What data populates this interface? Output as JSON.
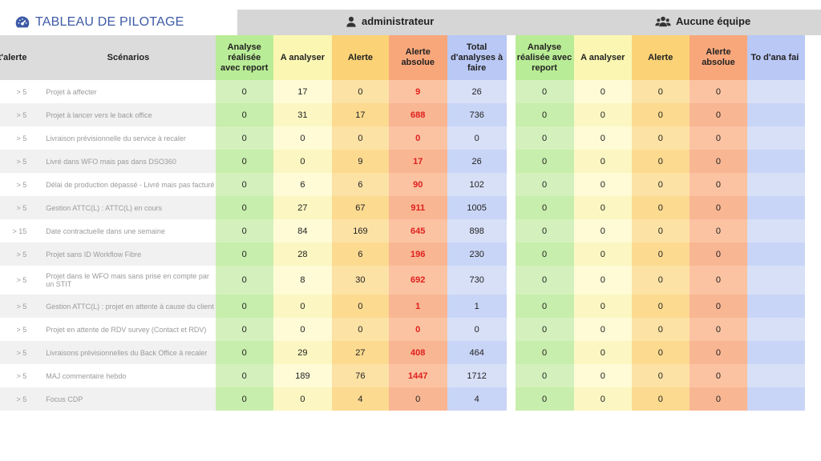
{
  "header": {
    "title": "TABLEAU DE PILOTAGE",
    "user": "administrateur",
    "team": "Aucune équipe"
  },
  "columns": {
    "alerte": "t'alerte",
    "scenarios": "Scénarios",
    "analyse_report": "Analyse réalisée avec report",
    "a_analyser": "A analyser",
    "alerte_col": "Alerte",
    "alerte_absolue": "Alerte absolue",
    "total": "Total d'analyses à faire",
    "total_cut": "To d'ana fai"
  },
  "rows": [
    {
      "alerte": "> 5",
      "scenario": "Projet à affecter",
      "g1": "0",
      "y1": "17",
      "o1": "0",
      "r1": "9",
      "b1": "26",
      "r1_red": true,
      "g2": "0",
      "y2": "0",
      "o2": "0",
      "r2": "0"
    },
    {
      "alerte": "> 5",
      "scenario": "Projet à lancer vers le back office",
      "g1": "0",
      "y1": "31",
      "o1": "17",
      "r1": "688",
      "b1": "736",
      "r1_red": true,
      "g2": "0",
      "y2": "0",
      "o2": "0",
      "r2": "0"
    },
    {
      "alerte": "> 5",
      "scenario": "Livraison prévisionnelle du service à recaler",
      "g1": "0",
      "y1": "0",
      "o1": "0",
      "r1": "0",
      "b1": "0",
      "r1_red": true,
      "g2": "0",
      "y2": "0",
      "o2": "0",
      "r2": "0"
    },
    {
      "alerte": "> 5",
      "scenario": "Livré dans WFO mais pas dans DSO360",
      "g1": "0",
      "y1": "0",
      "o1": "9",
      "r1": "17",
      "b1": "26",
      "r1_red": true,
      "g2": "0",
      "y2": "0",
      "o2": "0",
      "r2": "0"
    },
    {
      "alerte": "> 5",
      "scenario": "Délai de production dépassé - Livré mais pas facturé",
      "g1": "0",
      "y1": "6",
      "o1": "6",
      "r1": "90",
      "b1": "102",
      "r1_red": true,
      "g2": "0",
      "y2": "0",
      "o2": "0",
      "r2": "0"
    },
    {
      "alerte": "> 5",
      "scenario": "Gestion ATTC(L) : ATTC(L) en cours",
      "g1": "0",
      "y1": "27",
      "o1": "67",
      "r1": "911",
      "b1": "1005",
      "r1_red": true,
      "g2": "0",
      "y2": "0",
      "o2": "0",
      "r2": "0"
    },
    {
      "alerte": "> 15",
      "scenario": "Date contractuelle dans une semaine",
      "g1": "0",
      "y1": "84",
      "o1": "169",
      "r1": "645",
      "b1": "898",
      "r1_red": true,
      "g2": "0",
      "y2": "0",
      "o2": "0",
      "r2": "0"
    },
    {
      "alerte": "> 5",
      "scenario": "Projet sans ID Workflow Fibre",
      "g1": "0",
      "y1": "28",
      "o1": "6",
      "r1": "196",
      "b1": "230",
      "r1_red": true,
      "g2": "0",
      "y2": "0",
      "o2": "0",
      "r2": "0"
    },
    {
      "alerte": "> 5",
      "scenario": "Projet dans le WFO mais sans prise en compte par un STIT",
      "g1": "0",
      "y1": "8",
      "o1": "30",
      "r1": "692",
      "b1": "730",
      "r1_red": true,
      "g2": "0",
      "y2": "0",
      "o2": "0",
      "r2": "0",
      "tall": true
    },
    {
      "alerte": "> 5",
      "scenario": "Gestion ATTC(L) : projet en attente à cause du client",
      "g1": "0",
      "y1": "0",
      "o1": "0",
      "r1": "1",
      "b1": "1",
      "r1_red": true,
      "g2": "0",
      "y2": "0",
      "o2": "0",
      "r2": "0"
    },
    {
      "alerte": "> 5",
      "scenario": "Projet en attente de RDV survey (Contact et RDV)",
      "g1": "0",
      "y1": "0",
      "o1": "0",
      "r1": "0",
      "b1": "0",
      "r1_red": true,
      "g2": "0",
      "y2": "0",
      "o2": "0",
      "r2": "0"
    },
    {
      "alerte": "> 5",
      "scenario": "Livraisons prévisionnelles du Back Office à recaler",
      "g1": "0",
      "y1": "29",
      "o1": "27",
      "r1": "408",
      "b1": "464",
      "r1_red": true,
      "g2": "0",
      "y2": "0",
      "o2": "0",
      "r2": "0"
    },
    {
      "alerte": "> 5",
      "scenario": "MAJ commentaire hebdo",
      "g1": "0",
      "y1": "189",
      "o1": "76",
      "r1": "1447",
      "b1": "1712",
      "r1_red": true,
      "g2": "0",
      "y2": "0",
      "o2": "0",
      "r2": "0"
    },
    {
      "alerte": "> 5",
      "scenario": "Focus CDP",
      "g1": "0",
      "y1": "0",
      "o1": "4",
      "r1": "0",
      "b1": "4",
      "r1_red": false,
      "g2": "0",
      "y2": "0",
      "o2": "0",
      "r2": "0"
    }
  ]
}
